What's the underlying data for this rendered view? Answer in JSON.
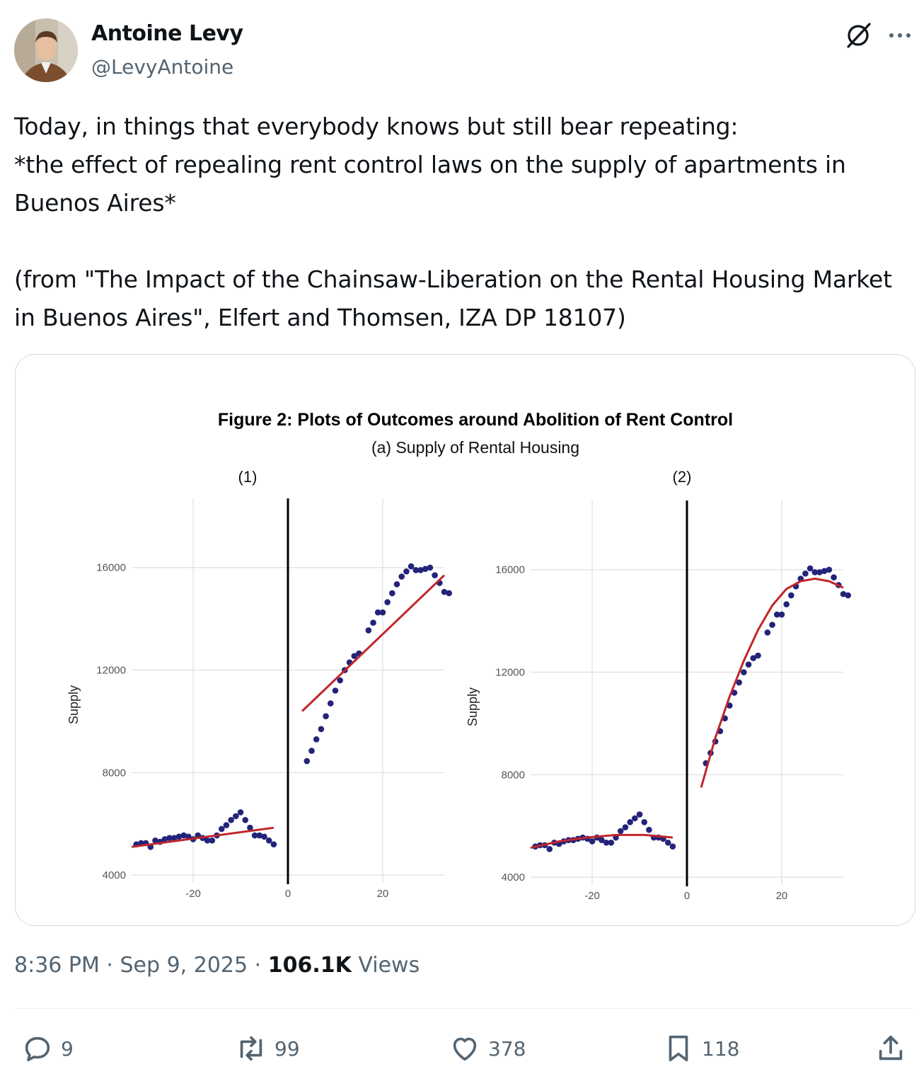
{
  "author": {
    "name": "Antoine Levy",
    "handle": "@LevyAntoine"
  },
  "icons": {
    "grok": "grok-icon",
    "more": "more-options-icon",
    "reply": "reply-icon",
    "retweet": "retweet-icon",
    "like": "heart-icon",
    "bookmark": "bookmark-icon",
    "share": "share-icon"
  },
  "tweet": {
    "text": "Today, in things that everybody knows but still bear repeating:\n*the effect of repealing rent control laws on the supply of apartments in Buenos Aires*\n\n(from \"The Impact of the Chainsaw-Liberation on the Rental Housing Market in Buenos Aires\", Elfert and Thomsen, IZA DP 18107)"
  },
  "meta": {
    "time": "8:36 PM",
    "date": "Sep 9, 2025",
    "views_count": "106.1K",
    "views_label": "Views"
  },
  "actions": {
    "replies": "9",
    "retweets": "99",
    "likes": "378",
    "bookmarks": "118"
  },
  "figure": {
    "title": "Figure 2:  Plots of Outcomes around Abolition of Rent Control",
    "subtitle": "(a) Supply of Rental Housing"
  },
  "chart_data": [
    {
      "type": "scatter",
      "panel_label": "(1)",
      "fit": "linear",
      "ylabel": "Supply",
      "xlabel": "",
      "xlim": [
        -33,
        33
      ],
      "ylim": [
        3700,
        18700
      ],
      "x_ticks": [
        "-20",
        "0",
        "20"
      ],
      "y_ticks": [
        "4000",
        "8000",
        "12000",
        "16000"
      ],
      "cutoff_x": 0,
      "grid": true,
      "points": [
        [
          -32,
          5200
        ],
        [
          -31,
          5250
        ],
        [
          -30,
          5250
        ],
        [
          -29,
          5100
        ],
        [
          -28,
          5350
        ],
        [
          -27,
          5300
        ],
        [
          -26,
          5400
        ],
        [
          -25,
          5450
        ],
        [
          -24,
          5450
        ],
        [
          -23,
          5500
        ],
        [
          -22,
          5550
        ],
        [
          -21,
          5500
        ],
        [
          -20,
          5400
        ],
        [
          -19,
          5550
        ],
        [
          -18,
          5450
        ],
        [
          -17,
          5350
        ],
        [
          -16,
          5350
        ],
        [
          -15,
          5550
        ],
        [
          -14,
          5800
        ],
        [
          -13,
          5950
        ],
        [
          -12,
          6150
        ],
        [
          -11,
          6300
        ],
        [
          -10,
          6450
        ],
        [
          -9,
          6150
        ],
        [
          -8,
          5850
        ],
        [
          -7,
          5550
        ],
        [
          -6,
          5550
        ],
        [
          -5,
          5500
        ],
        [
          -4,
          5350
        ],
        [
          -3,
          5200
        ],
        [
          4,
          8450
        ],
        [
          5,
          8850
        ],
        [
          6,
          9300
        ],
        [
          7,
          9700
        ],
        [
          8,
          10200
        ],
        [
          9,
          10700
        ],
        [
          10,
          11200
        ],
        [
          11,
          11600
        ],
        [
          12,
          12000
        ],
        [
          13,
          12300
        ],
        [
          14,
          12550
        ],
        [
          15,
          12650
        ],
        [
          17,
          13550
        ],
        [
          18,
          13850
        ],
        [
          19,
          14250
        ],
        [
          20,
          14250
        ],
        [
          21,
          14650
        ],
        [
          22,
          15000
        ],
        [
          23,
          15350
        ],
        [
          24,
          15650
        ],
        [
          25,
          15850
        ],
        [
          26,
          16050
        ],
        [
          27,
          15900
        ],
        [
          28,
          15900
        ],
        [
          29,
          15950
        ],
        [
          30,
          16000
        ],
        [
          31,
          15700
        ],
        [
          32,
          15400
        ],
        [
          33,
          15050
        ],
        [
          34,
          15000
        ]
      ],
      "fit_left": [
        [
          -33,
          5100
        ],
        [
          -3,
          5850
        ]
      ],
      "fit_right": [
        [
          3,
          10400
        ],
        [
          33,
          15700
        ]
      ]
    },
    {
      "type": "scatter",
      "panel_label": "(2)",
      "fit": "quadratic",
      "ylabel": "Supply",
      "xlabel": "",
      "xlim": [
        -33,
        33
      ],
      "ylim": [
        3700,
        18700
      ],
      "x_ticks": [
        "-20",
        "0",
        "20"
      ],
      "y_ticks": [
        "4000",
        "8000",
        "12000",
        "16000"
      ],
      "cutoff_x": 0,
      "grid": true,
      "points": [
        [
          -32,
          5200
        ],
        [
          -31,
          5250
        ],
        [
          -30,
          5250
        ],
        [
          -29,
          5100
        ],
        [
          -28,
          5350
        ],
        [
          -27,
          5300
        ],
        [
          -26,
          5400
        ],
        [
          -25,
          5450
        ],
        [
          -24,
          5450
        ],
        [
          -23,
          5500
        ],
        [
          -22,
          5550
        ],
        [
          -21,
          5500
        ],
        [
          -20,
          5400
        ],
        [
          -19,
          5550
        ],
        [
          -18,
          5450
        ],
        [
          -17,
          5350
        ],
        [
          -16,
          5350
        ],
        [
          -15,
          5550
        ],
        [
          -14,
          5800
        ],
        [
          -13,
          5950
        ],
        [
          -12,
          6150
        ],
        [
          -11,
          6300
        ],
        [
          -10,
          6450
        ],
        [
          -9,
          6150
        ],
        [
          -8,
          5850
        ],
        [
          -7,
          5550
        ],
        [
          -6,
          5550
        ],
        [
          -5,
          5500
        ],
        [
          -4,
          5350
        ],
        [
          -3,
          5200
        ],
        [
          4,
          8450
        ],
        [
          5,
          8850
        ],
        [
          6,
          9300
        ],
        [
          7,
          9700
        ],
        [
          8,
          10200
        ],
        [
          9,
          10700
        ],
        [
          10,
          11200
        ],
        [
          11,
          11600
        ],
        [
          12,
          12000
        ],
        [
          13,
          12300
        ],
        [
          14,
          12550
        ],
        [
          15,
          12650
        ],
        [
          17,
          13550
        ],
        [
          18,
          13850
        ],
        [
          19,
          14250
        ],
        [
          20,
          14250
        ],
        [
          21,
          14650
        ],
        [
          22,
          15000
        ],
        [
          23,
          15350
        ],
        [
          24,
          15650
        ],
        [
          25,
          15850
        ],
        [
          26,
          16050
        ],
        [
          27,
          15900
        ],
        [
          28,
          15900
        ],
        [
          29,
          15950
        ],
        [
          30,
          16000
        ],
        [
          31,
          15700
        ],
        [
          32,
          15400
        ],
        [
          33,
          15050
        ],
        [
          34,
          15000
        ]
      ],
      "fit_left": [
        [
          -33,
          5150
        ],
        [
          -27,
          5400
        ],
        [
          -21,
          5550
        ],
        [
          -15,
          5650
        ],
        [
          -9,
          5650
        ],
        [
          -3,
          5550
        ]
      ],
      "fit_right": [
        [
          3,
          7500
        ],
        [
          6,
          9450
        ],
        [
          9,
          11050
        ],
        [
          12,
          12450
        ],
        [
          15,
          13650
        ],
        [
          18,
          14600
        ],
        [
          21,
          15250
        ],
        [
          24,
          15550
        ],
        [
          27,
          15650
        ],
        [
          30,
          15550
        ],
        [
          33,
          15300
        ]
      ]
    }
  ]
}
